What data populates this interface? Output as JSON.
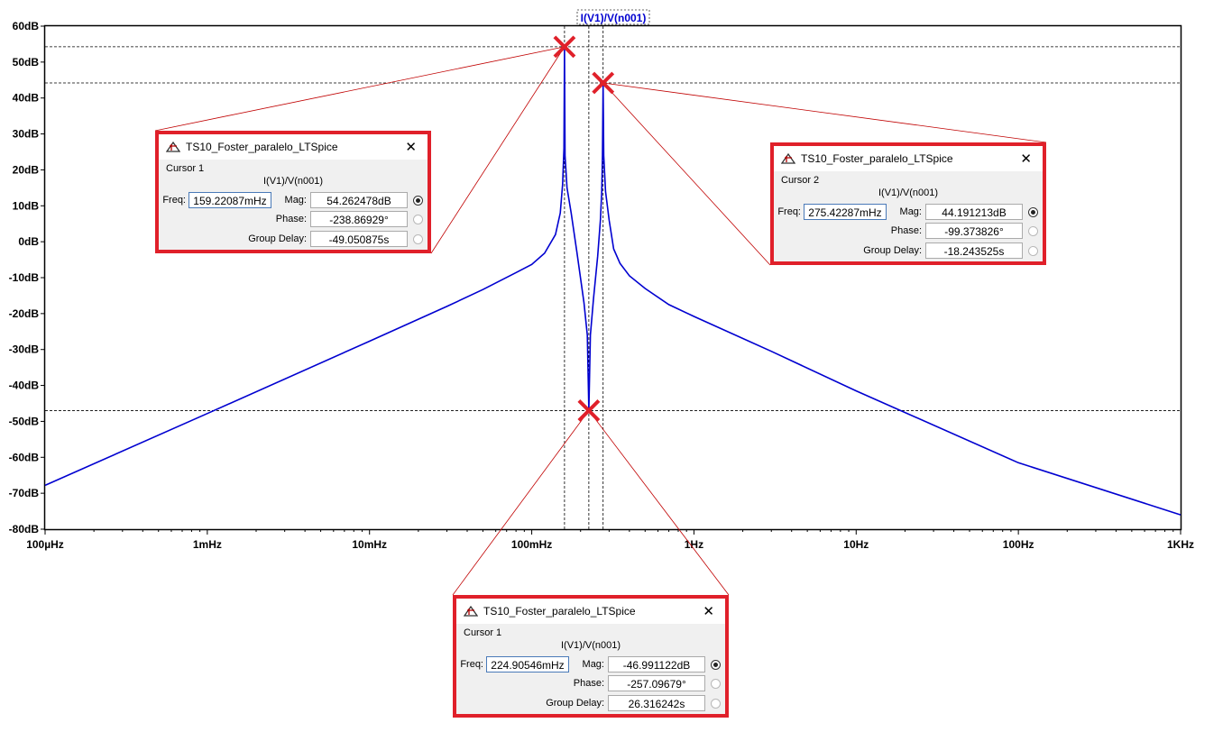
{
  "chart_data": {
    "type": "line",
    "title": "I(V1)/V(n001)",
    "x_scale": "log",
    "x_ticks": [
      "100µHz",
      "1mHz",
      "10mHz",
      "100mHz",
      "1Hz",
      "10Hz",
      "100Hz",
      "1KHz"
    ],
    "y_ticks": [
      "60dB",
      "50dB",
      "40dB",
      "30dB",
      "20dB",
      "10dB",
      "0dB",
      "-10dB",
      "-20dB",
      "-30dB",
      "-40dB",
      "-50dB",
      "-60dB",
      "-70dB",
      "-80dB"
    ],
    "xlim_hz": [
      0.0001,
      1000
    ],
    "ylim_db": [
      -80,
      60
    ],
    "grid": false,
    "series": [
      {
        "color": "#0000d0",
        "points": [
          [
            0.0001,
            -67.8
          ],
          [
            0.001,
            -47.8
          ],
          [
            0.01,
            -27.7
          ],
          [
            0.03,
            -18.0
          ],
          [
            0.05,
            -13.3
          ],
          [
            0.08,
            -8.6
          ],
          [
            0.1,
            -6.3
          ],
          [
            0.12,
            -3.2
          ],
          [
            0.14,
            2.0
          ],
          [
            0.15,
            8.0
          ],
          [
            0.155,
            16.0
          ],
          [
            0.158,
            26.0
          ],
          [
            0.1592,
            54.26
          ],
          [
            0.1605,
            24.0
          ],
          [
            0.165,
            15.0
          ],
          [
            0.175,
            8.0
          ],
          [
            0.19,
            -3.0
          ],
          [
            0.21,
            -17.0
          ],
          [
            0.22,
            -26.0
          ],
          [
            0.2249,
            -46.99
          ],
          [
            0.23,
            -26.0
          ],
          [
            0.24,
            -16.0
          ],
          [
            0.255,
            -4.0
          ],
          [
            0.265,
            6.0
          ],
          [
            0.27,
            14.0
          ],
          [
            0.273,
            24.0
          ],
          [
            0.2754,
            44.19
          ],
          [
            0.278,
            24.0
          ],
          [
            0.285,
            14.0
          ],
          [
            0.3,
            6.0
          ],
          [
            0.32,
            -2.0
          ],
          [
            0.35,
            -6.0
          ],
          [
            0.4,
            -9.5
          ],
          [
            0.5,
            -13.0
          ],
          [
            0.7,
            -17.5
          ],
          [
            1,
            -20.8
          ],
          [
            3,
            -30.5
          ],
          [
            10,
            -41.5
          ],
          [
            100,
            -61.5
          ],
          [
            1000,
            -76.0
          ]
        ]
      }
    ],
    "cursors": [
      {
        "freq_hz": 0.15922087,
        "mag_db": 54.262478
      },
      {
        "freq_hz": 0.27542287,
        "mag_db": 44.191213
      },
      {
        "freq_hz": 0.22490546,
        "mag_db": -46.991122
      }
    ]
  },
  "colors": {
    "trace": "#0000d0",
    "highlight": "#e0202a",
    "leader": "#c00000"
  },
  "dialogs": [
    {
      "icon": "ltspice-app-icon",
      "title": "TS10_Foster_paralelo_LTSpice",
      "cursor_label": "Cursor 1",
      "expr": "I(V1)/V(n001)",
      "freq_label": "Freq:",
      "freq": "159.22087mHz",
      "mag_label": "Mag:",
      "mag": "54.262478dB",
      "phase_label": "Phase:",
      "phase": "-238.86929°",
      "gd_label": "Group Delay:",
      "gd": "-49.050875s",
      "close": "✕"
    },
    {
      "icon": "ltspice-app-icon",
      "title": "TS10_Foster_paralelo_LTSpice",
      "cursor_label": "Cursor 2",
      "expr": "I(V1)/V(n001)",
      "freq_label": "Freq:",
      "freq": "275.42287mHz",
      "mag_label": "Mag:",
      "mag": "44.191213dB",
      "phase_label": "Phase:",
      "phase": "-99.373826°",
      "gd_label": "Group Delay:",
      "gd": "-18.243525s",
      "close": "✕"
    },
    {
      "icon": "ltspice-app-icon",
      "title": "TS10_Foster_paralelo_LTSpice",
      "cursor_label": "Cursor 1",
      "expr": "I(V1)/V(n001)",
      "freq_label": "Freq:",
      "freq": "224.90546mHz",
      "mag_label": "Mag:",
      "mag": "-46.991122dB",
      "phase_label": "Phase:",
      "phase": "-257.09679°",
      "gd_label": "Group Delay:",
      "gd": "26.316242s",
      "close": "✕"
    }
  ]
}
